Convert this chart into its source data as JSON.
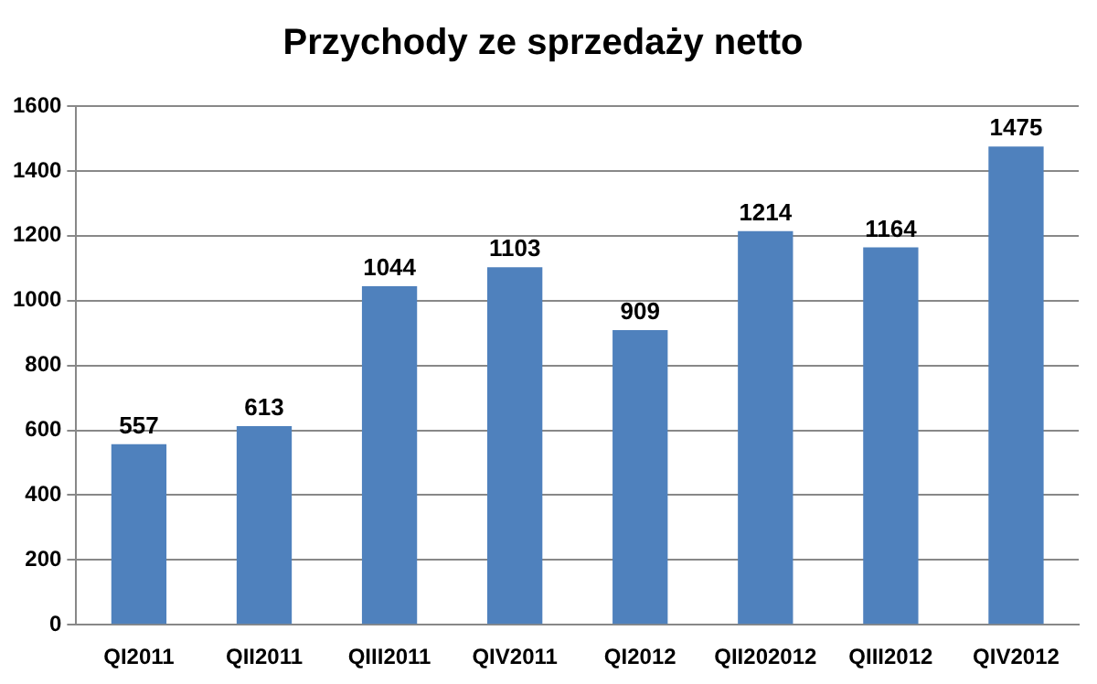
{
  "chart_data": {
    "type": "bar",
    "title": "Przychody ze sprzedaży netto",
    "categories": [
      "QI2011",
      "QII2011",
      "QIII2011",
      "QIV2011",
      "QI2012",
      "QII202012",
      "QIII2012",
      "QIV2012"
    ],
    "values": [
      557,
      613,
      1044,
      1103,
      909,
      1214,
      1164,
      1475
    ],
    "color": "#4f81bd",
    "ylim": [
      0,
      1600
    ],
    "yticks": [
      0,
      200,
      400,
      600,
      800,
      1000,
      1200,
      1400,
      1600
    ],
    "grid": "y",
    "legend": false,
    "data_labels": true
  }
}
